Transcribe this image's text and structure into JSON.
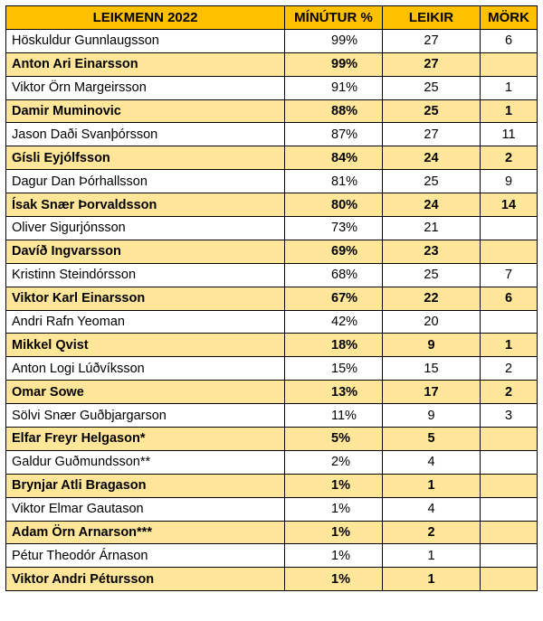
{
  "colors": {
    "header_bg": "#FFC000",
    "shaded_row_bg": "#FFE699",
    "plain_row_bg": "#FFFFFF",
    "border": "#000000"
  },
  "headers": {
    "name": "LEIKMENN 2022",
    "minutes": "MÍNÚTUR %",
    "games": "LEIKIR",
    "goals": "MÖRK"
  },
  "rows": [
    {
      "name": "Höskuldur Gunnlaugsson",
      "minutes": "99%",
      "games": "27",
      "goals": "6"
    },
    {
      "name": "Anton Ari Einarsson",
      "minutes": "99%",
      "games": "27",
      "goals": ""
    },
    {
      "name": "Viktor Örn Margeirsson",
      "minutes": "91%",
      "games": "25",
      "goals": "1"
    },
    {
      "name": "Damir Muminovic",
      "minutes": "88%",
      "games": "25",
      "goals": "1"
    },
    {
      "name": "Jason Daði Svanþórsson",
      "minutes": "87%",
      "games": "27",
      "goals": "11"
    },
    {
      "name": "Gísli Eyjólfsson",
      "minutes": "84%",
      "games": "24",
      "goals": "2"
    },
    {
      "name": "Dagur Dan Þórhallsson",
      "minutes": "81%",
      "games": "25",
      "goals": "9"
    },
    {
      "name": "Ísak Snær Þorvaldsson",
      "minutes": "80%",
      "games": "24",
      "goals": "14"
    },
    {
      "name": "Oliver Sigurjónsson",
      "minutes": "73%",
      "games": "21",
      "goals": ""
    },
    {
      "name": "Davíð Ingvarsson",
      "minutes": "69%",
      "games": "23",
      "goals": ""
    },
    {
      "name": "Kristinn Steindórsson",
      "minutes": "68%",
      "games": "25",
      "goals": "7"
    },
    {
      "name": "Viktor Karl Einarsson",
      "minutes": "67%",
      "games": "22",
      "goals": "6"
    },
    {
      "name": "Andri Rafn Yeoman",
      "minutes": "42%",
      "games": "20",
      "goals": ""
    },
    {
      "name": "Mikkel Qvist",
      "minutes": "18%",
      "games": "9",
      "goals": "1"
    },
    {
      "name": "Anton Logi Lúðvíksson",
      "minutes": "15%",
      "games": "15",
      "goals": "2"
    },
    {
      "name": "Omar Sowe",
      "minutes": "13%",
      "games": "17",
      "goals": "2"
    },
    {
      "name": "Sölvi Snær Guðbjargarson",
      "minutes": "11%",
      "games": "9",
      "goals": "3"
    },
    {
      "name": "Elfar Freyr Helgason*",
      "minutes": "5%",
      "games": "5",
      "goals": ""
    },
    {
      "name": "Galdur Guðmundsson**",
      "minutes": "2%",
      "games": "4",
      "goals": ""
    },
    {
      "name": "Brynjar Atli Bragason",
      "minutes": "1%",
      "games": "1",
      "goals": ""
    },
    {
      "name": "Viktor Elmar Gautason",
      "minutes": "1%",
      "games": "4",
      "goals": ""
    },
    {
      "name": "Adam Örn Arnarson***",
      "minutes": "1%",
      "games": "2",
      "goals": ""
    },
    {
      "name": "Pétur Theodór Árnason",
      "minutes": "1%",
      "games": "1",
      "goals": ""
    },
    {
      "name": "Viktor Andri Pétursson",
      "minutes": "1%",
      "games": "1",
      "goals": ""
    }
  ]
}
